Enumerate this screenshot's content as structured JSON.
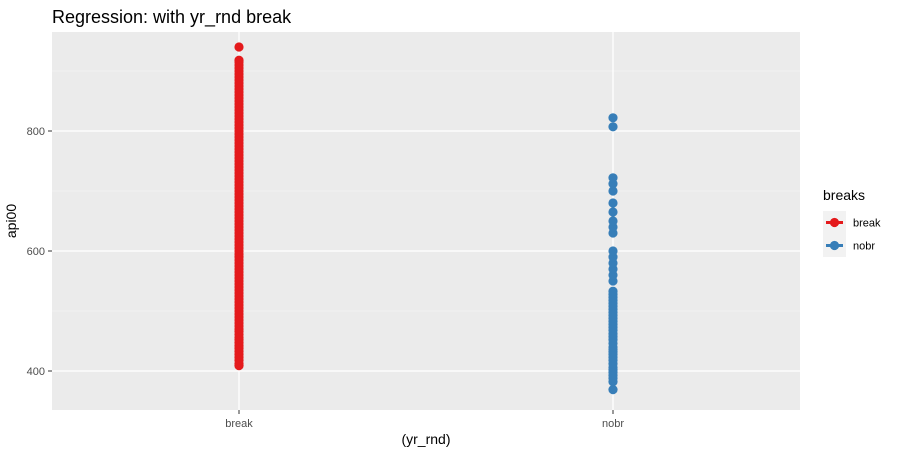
{
  "chart_data": {
    "type": "scatter",
    "title": "Regression: with yr_rnd break",
    "xlabel": "(yr_rnd)",
    "ylabel": "api00",
    "categories": [
      "break",
      "nobr"
    ],
    "ylim": [
      335,
      965
    ],
    "yticks": [
      400,
      600,
      800
    ],
    "grid": true,
    "legend": {
      "title": "breaks",
      "placement": "right",
      "entries": [
        "break",
        "nobr"
      ]
    },
    "series": [
      {
        "name": "break",
        "category": "break",
        "color": "#E41A1C",
        "values": [
          409,
          412,
          418,
          423,
          428,
          433,
          438,
          442,
          447,
          452,
          456,
          461,
          466,
          470,
          475,
          480,
          485,
          490,
          495,
          500,
          505,
          510,
          515,
          520,
          525,
          530,
          535,
          540,
          545,
          550,
          555,
          560,
          565,
          570,
          575,
          580,
          585,
          590,
          595,
          600,
          605,
          610,
          615,
          620,
          625,
          630,
          635,
          640,
          645,
          650,
          655,
          660,
          665,
          670,
          675,
          680,
          685,
          690,
          695,
          700,
          705,
          710,
          715,
          720,
          725,
          730,
          735,
          740,
          745,
          750,
          755,
          760,
          765,
          770,
          775,
          780,
          785,
          790,
          795,
          800,
          805,
          810,
          815,
          820,
          825,
          830,
          835,
          840,
          845,
          850,
          855,
          860,
          865,
          870,
          875,
          880,
          885,
          890,
          895,
          900,
          905,
          910,
          915,
          918,
          940
        ]
      },
      {
        "name": "nobr",
        "category": "nobr",
        "color": "#377EB8",
        "values": [
          369,
          382,
          388,
          393,
          398,
          402,
          406,
          412,
          418,
          423,
          428,
          432,
          436,
          440,
          446,
          452,
          457,
          462,
          468,
          473,
          478,
          483,
          488,
          493,
          498,
          503,
          508,
          513,
          518,
          523,
          528,
          533,
          550,
          560,
          570,
          580,
          590,
          600,
          630,
          640,
          650,
          665,
          680,
          700,
          712,
          722,
          807,
          822
        ]
      }
    ]
  }
}
